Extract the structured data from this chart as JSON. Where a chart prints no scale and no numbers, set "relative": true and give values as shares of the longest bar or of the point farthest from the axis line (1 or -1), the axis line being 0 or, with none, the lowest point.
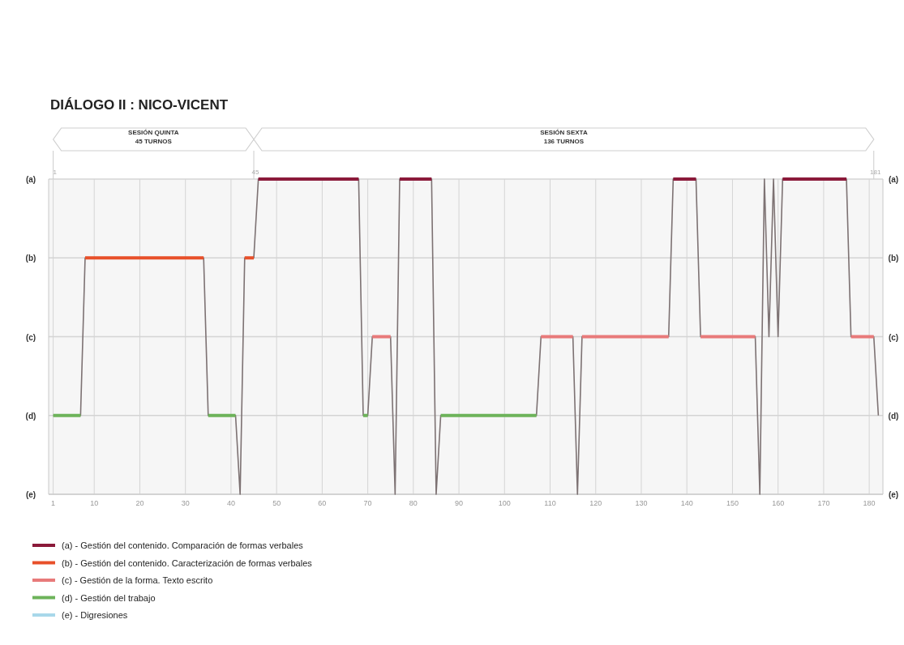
{
  "chart_data": {
    "type": "line",
    "title": "DIÁLOGO II : NICO-VICENT",
    "relative": true,
    "xlim": [
      0,
      183
    ],
    "xticks": [
      1,
      10,
      20,
      30,
      40,
      50,
      60,
      70,
      80,
      90,
      100,
      110,
      120,
      130,
      140,
      150,
      160,
      170,
      180
    ],
    "x2lim": [
      0,
      183
    ],
    "x2ticks": [
      1,
      45,
      181
    ],
    "grid": "x",
    "legend": "bottom left",
    "line_style": "solid",
    "marker": "none",
    "ref_lines": [
      {
        "axis": "y",
        "value": 1,
        "label": "(a)"
      },
      {
        "axis": "y",
        "value": 0.75,
        "label": "(b)"
      },
      {
        "axis": "y",
        "value": 0.5,
        "label": "(c)"
      },
      {
        "axis": "y",
        "value": 0.25,
        "label": "(d)"
      },
      {
        "axis": "y",
        "value": 0,
        "label": "(e)"
      }
    ],
    "annotations": [
      "SESIÓN QUINTA\n45 TURNOS",
      "SESIÓN SEXTA\n136 TURNOS"
    ],
    "series": [
      {
        "color": "#7d7273",
        "x": [
          1,
          7,
          8,
          34,
          35,
          41,
          42,
          43,
          45,
          46,
          68,
          69,
          70,
          71,
          75,
          76,
          77,
          84,
          85,
          86,
          107,
          108,
          115,
          116,
          117,
          136,
          137,
          142,
          143,
          155,
          156,
          157,
          158,
          159,
          160,
          161,
          175,
          176,
          181,
          182
        ],
        "values": [
          0.25,
          0.25,
          0.75,
          0.75,
          0.25,
          0.25,
          0,
          0.75,
          0.75,
          1,
          1,
          0.25,
          0.25,
          0.5,
          0.5,
          0,
          1,
          1,
          0,
          0.25,
          0.25,
          0.5,
          0.5,
          0,
          0.5,
          0.5,
          1,
          1,
          0.5,
          0.5,
          0,
          1,
          0.5,
          1,
          0.5,
          1,
          1,
          0.5,
          0.5,
          0.25
        ]
      },
      {
        "name": "(a) - Gestión del contenido. Comparación de formas verbales",
        "color": "#8b1a3a",
        "x": [
          46,
          68,
          72,
          77,
          84,
          110,
          137,
          142,
          150,
          161,
          175
        ],
        "values": [
          1,
          1,
          null,
          1,
          1,
          null,
          1,
          1,
          null,
          1,
          1
        ]
      },
      {
        "name": "(b) - Gestión del contenido. Caracterización de formas verbales",
        "color": "#e8502a",
        "x": [
          8,
          34,
          38,
          43,
          45
        ],
        "values": [
          0.75,
          0.75,
          null,
          0.75,
          0.75
        ]
      },
      {
        "name": "(c) - Gestión de la forma. Texto escrito",
        "color": "#e87a7a",
        "x": [
          71,
          75,
          90,
          108,
          115,
          116,
          117,
          136,
          140,
          143,
          155,
          165,
          176,
          181
        ],
        "values": [
          0.5,
          0.5,
          null,
          0.5,
          0.5,
          null,
          0.5,
          0.5,
          null,
          0.5,
          0.5,
          null,
          0.5,
          0.5
        ]
      },
      {
        "name": "(d) - Gestión del trabajo",
        "color": "#6db35a",
        "x": [
          1,
          7,
          20,
          35,
          41,
          60,
          69,
          70,
          78,
          86,
          107
        ],
        "values": [
          0.25,
          0.25,
          null,
          0.25,
          0.25,
          null,
          0.25,
          0.25,
          null,
          0.25,
          0.25
        ]
      },
      {
        "name": "(e) - Digresiones",
        "color": "#a8d8ea"
      }
    ]
  }
}
